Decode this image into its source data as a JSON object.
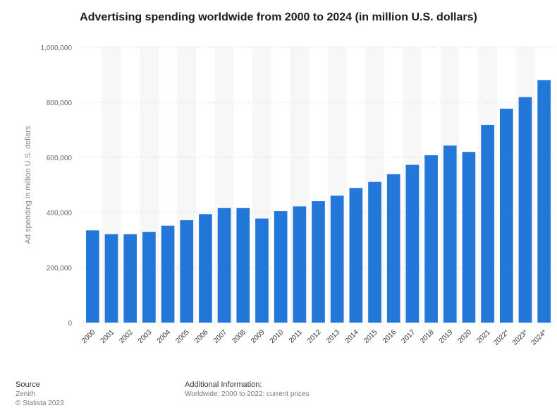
{
  "chart_data": {
    "type": "bar",
    "title": "Advertising spending worldwide from 2000 to 2024 (in million U.S. dollars)",
    "xlabel": "",
    "ylabel": "Ad spending in million U.S. dollars",
    "categories": [
      "2000",
      "2001",
      "2002",
      "2003",
      "2004",
      "2005",
      "2006",
      "2007",
      "2008",
      "2009",
      "2010",
      "2011",
      "2012",
      "2013",
      "2014",
      "2015",
      "2016",
      "2017",
      "2018",
      "2019",
      "2020",
      "2021",
      "2022*",
      "2023*",
      "2024*"
    ],
    "values": [
      335000,
      321000,
      321000,
      329000,
      352000,
      372000,
      394000,
      416000,
      416000,
      378000,
      405000,
      422000,
      441000,
      461000,
      489000,
      511000,
      539000,
      573000,
      608000,
      643000,
      620000,
      718000,
      777000,
      819000,
      881000
    ],
    "ylim": [
      0,
      1000000
    ],
    "yticks": [
      0,
      200000,
      400000,
      600000,
      800000,
      1000000
    ],
    "ytick_labels": [
      "0",
      "200,000",
      "400,000",
      "600,000",
      "800,000",
      "1,000,000"
    ],
    "bar_color": "#2377d9",
    "grid": true,
    "legend": "none"
  },
  "footer": {
    "source_heading": "Source",
    "source_name": "Zenith",
    "copyright": "© Statista 2023",
    "info_heading": "Additional Information:",
    "info_text": "Worldwide; 2000 to 2022; current prices"
  }
}
